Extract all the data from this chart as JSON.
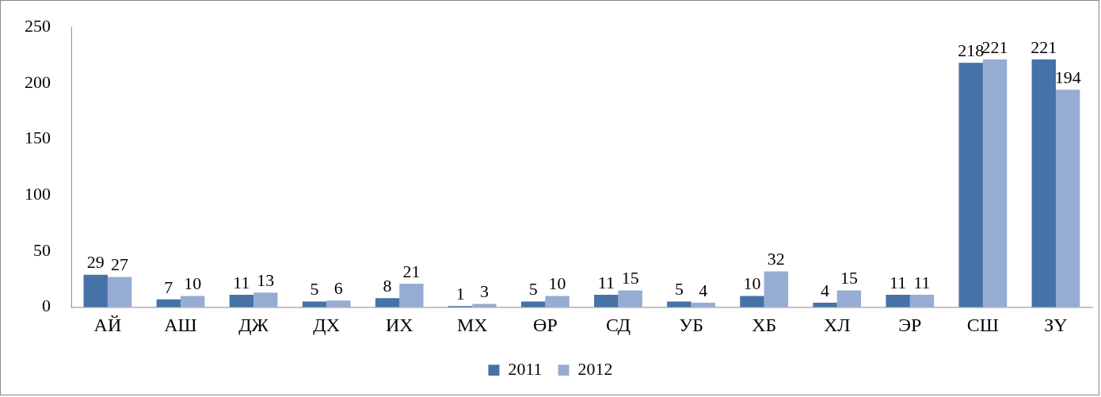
{
  "chart_data": {
    "type": "bar",
    "categories": [
      "АЙ",
      "АШ",
      "ДЖ",
      "ДХ",
      "ИХ",
      "МХ",
      "ӨР",
      "СД",
      "УБ",
      "ХБ",
      "ХЛ",
      "ЭР",
      "СШ",
      "ЗҮ"
    ],
    "series": [
      {
        "name": "2011",
        "color": "#4572a7",
        "values": [
          29,
          7,
          11,
          5,
          8,
          1,
          5,
          11,
          5,
          10,
          4,
          11,
          218,
          221
        ]
      },
      {
        "name": "2012",
        "color": "#97acd3",
        "values": [
          27,
          10,
          13,
          6,
          21,
          3,
          10,
          15,
          4,
          32,
          15,
          11,
          221,
          194
        ]
      }
    ],
    "ylim": [
      0,
      250
    ],
    "yticks": [
      0,
      50,
      100,
      150,
      200,
      250
    ],
    "grid": false,
    "legend": "bottom",
    "data_labels": true
  }
}
